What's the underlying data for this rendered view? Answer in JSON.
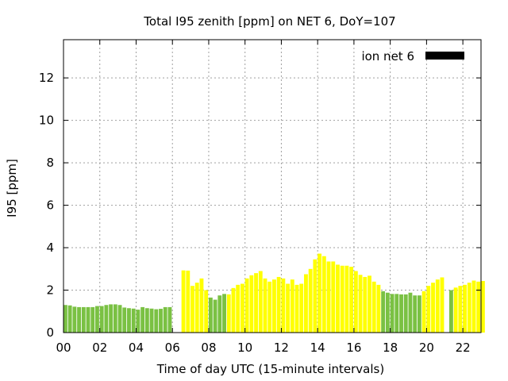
{
  "chart_data": {
    "type": "bar",
    "title": "Total I95 zenith [ppm] on NET 6, DoY=107",
    "xlabel": "Time of day UTC (15-minute intervals)",
    "ylabel": "I95 [ppm]",
    "xlim": [
      0,
      23
    ],
    "ylim": [
      0,
      13.8
    ],
    "xticks": [
      "00",
      "02",
      "04",
      "06",
      "08",
      "10",
      "12",
      "14",
      "16",
      "18",
      "20",
      "22"
    ],
    "yticks": [
      "0",
      "2",
      "4",
      "6",
      "8",
      "10",
      "12"
    ],
    "grid": true,
    "legend": {
      "label": "ion net 6",
      "color": "#000000",
      "position": "top-right"
    },
    "colors": {
      "green": "#7ac143",
      "yellow": "#ffff00"
    },
    "series": [
      {
        "values": [
          1.3,
          1.28,
          1.22,
          1.2,
          1.2,
          1.2,
          1.2,
          1.25,
          1.25,
          1.3,
          1.33,
          1.33,
          1.3,
          1.18,
          1.15,
          1.13,
          1.08,
          1.2,
          1.15,
          1.13,
          1.1,
          1.12,
          1.2,
          1.2,
          null,
          null,
          2.93,
          2.92,
          2.2,
          2.35,
          2.55,
          2.0,
          1.65,
          1.55,
          1.75,
          1.82,
          1.8,
          2.1,
          2.25,
          2.3,
          2.55,
          2.7,
          2.8,
          2.9,
          2.55,
          2.4,
          2.5,
          2.62,
          2.55,
          2.3,
          2.5,
          2.25,
          2.3,
          2.75,
          3.0,
          3.45,
          3.72,
          3.6,
          3.35,
          3.35,
          3.2,
          3.15,
          3.15,
          3.1,
          2.9,
          2.72,
          2.62,
          2.68,
          2.4,
          2.25,
          1.95,
          1.88,
          1.82,
          1.82,
          1.8,
          1.8,
          1.88,
          1.75,
          1.75,
          1.95,
          2.2,
          2.35,
          2.5,
          2.6,
          null,
          2.0,
          2.12,
          2.2,
          2.25,
          2.35,
          2.45,
          2.4,
          2.43
        ],
        "colors": [
          "g",
          "g",
          "g",
          "g",
          "g",
          "g",
          "g",
          "g",
          "g",
          "g",
          "g",
          "g",
          "g",
          "g",
          "g",
          "g",
          "g",
          "g",
          "g",
          "g",
          "g",
          "g",
          "g",
          "g",
          "y",
          "y",
          "y",
          "y",
          "y",
          "y",
          "y",
          "y",
          "g",
          "g",
          "g",
          "g",
          "y",
          "y",
          "y",
          "y",
          "y",
          "y",
          "y",
          "y",
          "y",
          "y",
          "y",
          "y",
          "y",
          "y",
          "y",
          "y",
          "y",
          "y",
          "y",
          "y",
          "y",
          "y",
          "y",
          "y",
          "y",
          "y",
          "y",
          "y",
          "y",
          "y",
          "y",
          "y",
          "y",
          "y",
          "g",
          "g",
          "g",
          "g",
          "g",
          "g",
          "g",
          "g",
          "g",
          "y",
          "y",
          "y",
          "y",
          "y",
          "g",
          "g",
          "y",
          "y",
          "y",
          "y",
          "y",
          "y",
          "y"
        ]
      }
    ]
  }
}
